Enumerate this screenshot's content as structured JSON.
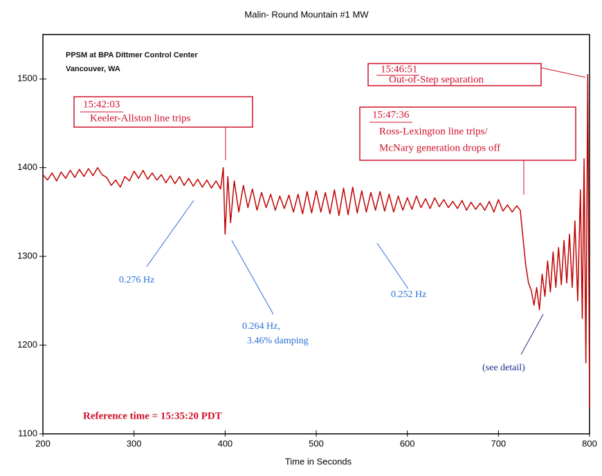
{
  "chart_data": {
    "type": "line",
    "title": "Malin- Round Mountain #1 MW",
    "x_label": "Time in Seconds",
    "source": [
      "PPSM at BPA Dittmer Control Center",
      "Vancouver, WA"
    ],
    "annotations": [
      {
        "time": "15:42:03",
        "text": [
          "Keeler-Allston line trips"
        ]
      },
      {
        "time": "15:46:51",
        "text": [
          "Out-of-Step separation"
        ]
      },
      {
        "time": "15:47:36",
        "text": [
          "Ross-Lexington line trips/",
          "McNary generation drops off"
        ]
      }
    ],
    "notes": [
      "0.276 Hz",
      "0.264 Hz,",
      "3.46% damping",
      "0.252 Hz",
      "(see detail)"
    ],
    "reference": "Reference time = 15:35:20 PDT",
    "color": "#c00000",
    "xlim": [
      200,
      800
    ],
    "ylim": [
      1100,
      1550
    ],
    "xticks": [
      200,
      300,
      400,
      500,
      600,
      700,
      800
    ],
    "yticks": [
      1100,
      1200,
      1300,
      1400,
      1500
    ],
    "x": [
      200,
      205,
      210,
      215,
      220,
      225,
      230,
      235,
      240,
      245,
      250,
      255,
      260,
      265,
      270,
      275,
      280,
      285,
      290,
      295,
      300,
      305,
      310,
      315,
      320,
      325,
      330,
      335,
      340,
      345,
      350,
      355,
      360,
      365,
      370,
      375,
      380,
      385,
      390,
      395,
      398,
      400,
      403,
      406,
      410,
      415,
      420,
      425,
      430,
      435,
      440,
      445,
      450,
      455,
      460,
      465,
      470,
      475,
      480,
      485,
      490,
      495,
      500,
      505,
      510,
      515,
      520,
      525,
      530,
      535,
      540,
      545,
      550,
      555,
      560,
      565,
      570,
      575,
      580,
      585,
      590,
      595,
      600,
      605,
      610,
      615,
      620,
      625,
      630,
      635,
      640,
      645,
      650,
      655,
      660,
      665,
      670,
      675,
      680,
      685,
      690,
      695,
      700,
      705,
      710,
      715,
      720,
      724,
      727,
      730,
      733,
      736,
      739,
      742,
      745,
      748,
      751,
      754,
      757,
      760,
      763,
      766,
      769,
      772,
      775,
      778,
      781,
      784,
      787,
      790,
      792,
      794,
      796,
      798,
      800
    ],
    "values": [
      1392,
      1386,
      1394,
      1385,
      1395,
      1388,
      1397,
      1389,
      1398,
      1390,
      1399,
      1391,
      1400,
      1392,
      1389,
      1380,
      1386,
      1378,
      1390,
      1385,
      1396,
      1388,
      1397,
      1387,
      1394,
      1386,
      1392,
      1383,
      1391,
      1382,
      1390,
      1380,
      1388,
      1379,
      1387,
      1378,
      1386,
      1377,
      1385,
      1376,
      1400,
      1325,
      1390,
      1338,
      1385,
      1350,
      1380,
      1355,
      1376,
      1352,
      1372,
      1355,
      1370,
      1352,
      1368,
      1354,
      1369,
      1350,
      1370,
      1348,
      1373,
      1349,
      1374,
      1350,
      1372,
      1348,
      1375,
      1346,
      1377,
      1347,
      1378,
      1349,
      1374,
      1350,
      1372,
      1352,
      1373,
      1351,
      1370,
      1350,
      1368,
      1352,
      1366,
      1353,
      1368,
      1355,
      1365,
      1354,
      1366,
      1356,
      1364,
      1355,
      1362,
      1354,
      1363,
      1352,
      1361,
      1353,
      1360,
      1352,
      1362,
      1350,
      1364,
      1351,
      1358,
      1350,
      1357,
      1352,
      1320,
      1290,
      1270,
      1262,
      1245,
      1265,
      1240,
      1280,
      1255,
      1295,
      1260,
      1305,
      1265,
      1310,
      1268,
      1318,
      1270,
      1325,
      1265,
      1340,
      1250,
      1375,
      1230,
      1410,
      1180,
      1505,
      1130
    ]
  }
}
